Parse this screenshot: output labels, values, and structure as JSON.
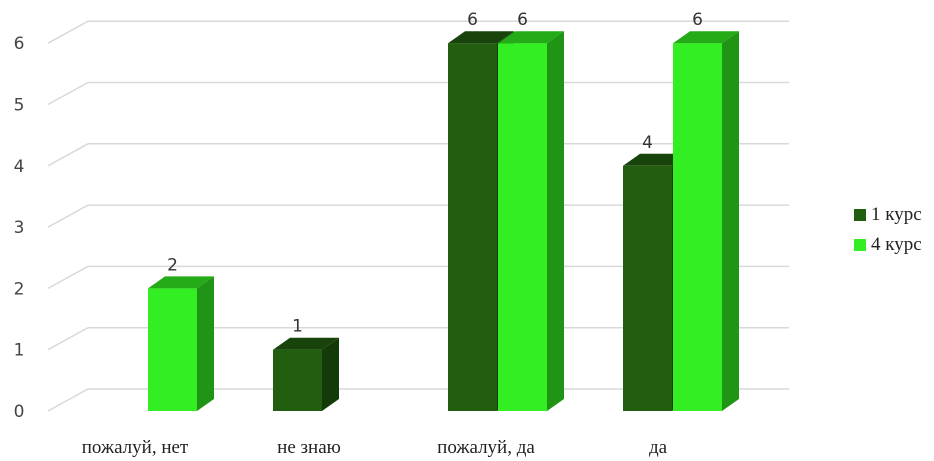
{
  "chart_data": {
    "type": "bar",
    "categories": [
      "пожалуй, нет",
      "не знаю",
      "пожалуй, да",
      "да"
    ],
    "series": [
      {
        "name": "1 курс",
        "values": [
          0,
          1,
          6,
          4
        ],
        "color": "#215e0f"
      },
      {
        "name": "4 курс",
        "values": [
          2,
          0,
          6,
          6
        ],
        "color": "#33ee22"
      }
    ],
    "data_labels": [
      [
        null,
        "1",
        "6",
        "4"
      ],
      [
        "2",
        null,
        "6",
        "6"
      ]
    ],
    "yticks": [
      "0",
      "1",
      "2",
      "3",
      "4",
      "5",
      "6"
    ],
    "ylim": [
      0,
      6
    ],
    "grid": true,
    "legend_position": "right",
    "style": "3d-column"
  }
}
